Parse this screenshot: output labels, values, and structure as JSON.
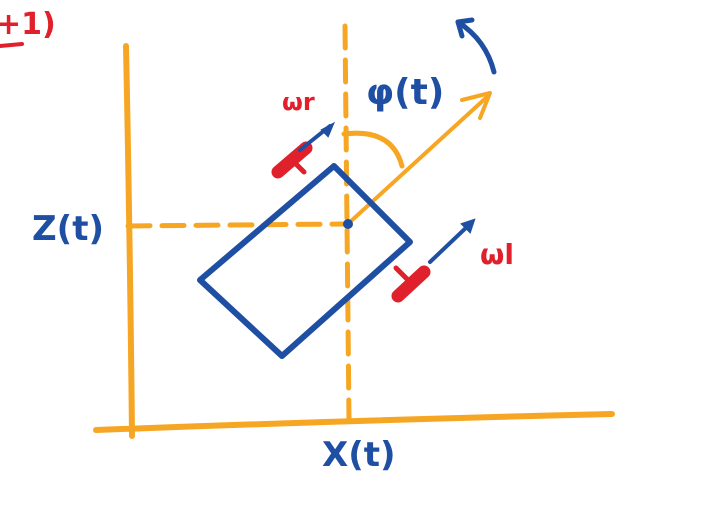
{
  "colors": {
    "axis": "#f6a623",
    "robot": "#1f4fa3",
    "wheel": "#e0202a",
    "background": "#ffffff"
  },
  "labels": {
    "corner_fragment": "+1)",
    "z_label": "Z(t)",
    "x_label": "X(t)",
    "phi_label": "φ(t)",
    "wheel_top_label": "ωr",
    "wheel_right_label": "ωl"
  }
}
